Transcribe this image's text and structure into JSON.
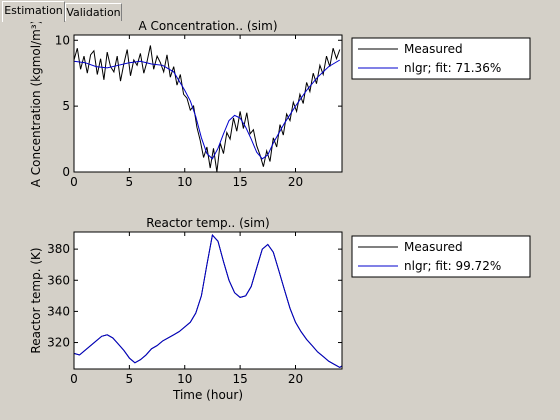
{
  "tabs": [
    {
      "label": "Estimation",
      "active": true
    },
    {
      "label": "Validation",
      "active": false
    }
  ],
  "colors": {
    "background": "#d4d0c8",
    "measured": "#000000",
    "model": "#0000cc",
    "axes_bg": "#ffffff"
  },
  "chart_data": [
    {
      "type": "line",
      "title": "A Concentration.. (sim)",
      "ylabel": "A Concentration (kgmol/m³)",
      "xlabel": "",
      "xlim": [
        0,
        24.2
      ],
      "ylim": [
        0,
        10.4
      ],
      "xticks": [
        0,
        5,
        10,
        15,
        20
      ],
      "yticks": [
        0,
        5,
        10
      ],
      "legend_position": "right",
      "series": [
        {
          "name": "Measured",
          "x": [
            0,
            0.3,
            0.6,
            0.9,
            1.2,
            1.5,
            1.8,
            2.1,
            2.4,
            2.7,
            3.0,
            3.3,
            3.6,
            3.9,
            4.2,
            4.5,
            4.8,
            5.1,
            5.4,
            5.7,
            6.0,
            6.3,
            6.6,
            6.9,
            7.2,
            7.5,
            7.8,
            8.1,
            8.4,
            8.7,
            9.0,
            9.3,
            9.6,
            9.9,
            10.2,
            10.5,
            10.8,
            11.1,
            11.4,
            11.7,
            12.0,
            12.3,
            12.6,
            12.9,
            13.2,
            13.5,
            13.8,
            14.1,
            14.4,
            14.7,
            15.0,
            15.3,
            15.6,
            15.9,
            16.2,
            16.5,
            16.8,
            17.1,
            17.4,
            17.7,
            18.0,
            18.3,
            18.6,
            18.9,
            19.2,
            19.5,
            19.8,
            20.1,
            20.4,
            20.7,
            21.0,
            21.3,
            21.6,
            21.9,
            22.2,
            22.5,
            22.8,
            23.1,
            23.4,
            23.7,
            24.0
          ],
          "values": [
            8.5,
            9.4,
            7.8,
            8.8,
            7.5,
            8.9,
            9.2,
            7.4,
            8.6,
            7.0,
            9.1,
            8.0,
            7.6,
            8.8,
            6.9,
            8.2,
            9.3,
            7.3,
            8.5,
            8.1,
            9.0,
            7.5,
            8.4,
            9.6,
            7.8,
            8.8,
            8.3,
            7.6,
            8.9,
            7.2,
            8.0,
            6.6,
            7.4,
            5.9,
            5.6,
            4.7,
            5.0,
            3.4,
            2.4,
            1.1,
            1.9,
            0.3,
            1.8,
            0.0,
            2.2,
            1.4,
            3.0,
            2.5,
            4.1,
            3.1,
            4.6,
            3.3,
            4.5,
            2.9,
            3.2,
            2.0,
            1.3,
            0.4,
            1.6,
            0.8,
            2.6,
            1.9,
            3.6,
            2.8,
            4.4,
            3.9,
            5.3,
            4.6,
            5.9,
            5.2,
            6.8,
            6.1,
            7.5,
            6.7,
            8.1,
            7.4,
            8.8,
            8.0,
            9.4,
            8.6,
            9.3
          ]
        },
        {
          "name": "nlgr; fit: 71.36%",
          "x": [
            0,
            1,
            2,
            3,
            4,
            5,
            6,
            7,
            8,
            9,
            10,
            10.5,
            11,
            11.5,
            12,
            12.5,
            13,
            13.5,
            14,
            14.5,
            15,
            15.5,
            16,
            16.5,
            17,
            17.5,
            18,
            19,
            20,
            21,
            22,
            23,
            24
          ],
          "values": [
            8.4,
            8.3,
            8.0,
            7.9,
            8.1,
            8.3,
            8.4,
            8.2,
            8.1,
            7.6,
            6.2,
            5.4,
            4.2,
            2.6,
            1.4,
            1.0,
            1.8,
            2.9,
            3.9,
            4.3,
            4.1,
            3.4,
            2.5,
            1.5,
            1.0,
            1.3,
            2.2,
            3.7,
            5.0,
            6.2,
            7.2,
            8.0,
            8.5
          ]
        }
      ]
    },
    {
      "type": "line",
      "title": "Reactor temp.. (sim)",
      "ylabel": "Reactor temp. (K)",
      "xlabel": "Time (hour)",
      "xlim": [
        0,
        24.2
      ],
      "ylim": [
        303,
        391
      ],
      "xticks": [
        0,
        5,
        10,
        15,
        20
      ],
      "yticks": [
        320,
        340,
        360,
        380
      ],
      "legend_position": "right",
      "series": [
        {
          "name": "Measured",
          "x": [
            0,
            0.5,
            1,
            1.5,
            2,
            2.5,
            3,
            3.5,
            4,
            4.5,
            5,
            5.5,
            6,
            6.5,
            7,
            7.5,
            8,
            8.5,
            9,
            9.5,
            10,
            10.5,
            11,
            11.5,
            12,
            12.5,
            13,
            13.5,
            14,
            14.5,
            15,
            15.5,
            16,
            16.5,
            17,
            17.5,
            18,
            18.5,
            19,
            19.5,
            20,
            20.5,
            21,
            21.5,
            22,
            22.5,
            23,
            23.5,
            24,
            24.2
          ],
          "values": [
            313,
            312,
            315,
            318,
            321,
            324,
            325,
            323,
            319,
            315,
            310,
            307,
            309,
            312,
            316,
            318,
            321,
            323,
            325,
            327,
            330,
            333,
            339,
            350,
            370,
            389,
            385,
            372,
            360,
            352,
            349,
            350,
            356,
            368,
            380,
            383,
            378,
            366,
            354,
            342,
            333,
            327,
            322,
            318,
            314,
            311,
            308,
            306,
            304,
            305
          ]
        },
        {
          "name": "nlgr; fit: 99.72%",
          "x": [
            0,
            0.5,
            1,
            1.5,
            2,
            2.5,
            3,
            3.5,
            4,
            4.5,
            5,
            5.5,
            6,
            6.5,
            7,
            7.5,
            8,
            8.5,
            9,
            9.5,
            10,
            10.5,
            11,
            11.5,
            12,
            12.5,
            13,
            13.5,
            14,
            14.5,
            15,
            15.5,
            16,
            16.5,
            17,
            17.5,
            18,
            18.5,
            19,
            19.5,
            20,
            20.5,
            21,
            21.5,
            22,
            22.5,
            23,
            23.5,
            24,
            24.2
          ],
          "values": [
            313,
            312,
            315,
            318,
            321,
            324,
            325,
            323,
            319,
            315,
            310,
            307,
            309,
            312,
            316,
            318,
            321,
            323,
            325,
            327,
            330,
            333,
            339,
            350,
            370,
            389,
            385,
            372,
            360,
            352,
            349,
            350,
            356,
            368,
            380,
            383,
            378,
            366,
            354,
            342,
            333,
            327,
            322,
            318,
            314,
            311,
            308,
            306,
            304,
            305
          ]
        }
      ]
    }
  ]
}
